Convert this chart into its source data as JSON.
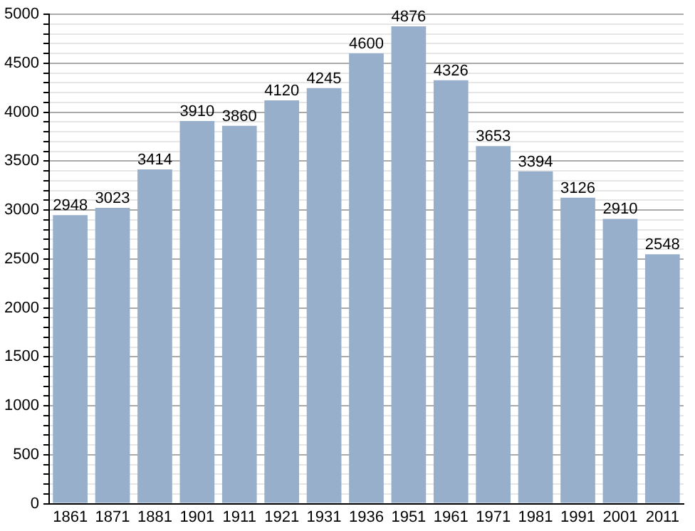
{
  "chart_data": {
    "type": "bar",
    "categories": [
      "1861",
      "1871",
      "1881",
      "1901",
      "1911",
      "1921",
      "1931",
      "1936",
      "1951",
      "1961",
      "1971",
      "1981",
      "1991",
      "2001",
      "2011"
    ],
    "values": [
      2948,
      3023,
      3414,
      3910,
      3860,
      4120,
      4245,
      4600,
      4876,
      4326,
      3653,
      3394,
      3126,
      2910,
      2548
    ],
    "color": "#97afcb",
    "ylim": [
      0,
      5000
    ],
    "yticks": [
      0,
      {
        "value": 100,
        "label": null
      },
      {
        "value": 200,
        "label": null
      },
      {
        "value": 300,
        "label": null
      },
      {
        "value": 400,
        "label": null
      },
      500,
      {
        "value": 600,
        "label": null
      },
      {
        "value": 700,
        "label": null
      },
      {
        "value": 800,
        "label": null
      },
      {
        "value": 900,
        "label": null
      },
      1000,
      {
        "value": 1100,
        "label": null
      },
      {
        "value": 1200,
        "label": null
      },
      {
        "value": 1300,
        "label": null
      },
      {
        "value": 1400,
        "label": null
      },
      1500,
      {
        "value": 1600,
        "label": null
      },
      {
        "value": 1700,
        "label": null
      },
      {
        "value": 1800,
        "label": null
      },
      {
        "value": 1900,
        "label": null
      },
      2000,
      {
        "value": 2100,
        "label": null
      },
      {
        "value": 2200,
        "label": null
      },
      {
        "value": 2300,
        "label": null
      },
      {
        "value": 2400,
        "label": null
      },
      2500,
      {
        "value": 2600,
        "label": null
      },
      {
        "value": 2700,
        "label": null
      },
      {
        "value": 2800,
        "label": null
      },
      {
        "value": 2900,
        "label": null
      },
      3000,
      {
        "value": 3100,
        "label": null
      },
      {
        "value": 3200,
        "label": null
      },
      {
        "value": 3300,
        "label": null
      },
      {
        "value": 3400,
        "label": null
      },
      3500,
      {
        "value": 3600,
        "label": null
      },
      {
        "value": 3700,
        "label": null
      },
      {
        "value": 3800,
        "label": null
      },
      {
        "value": 3900,
        "label": null
      },
      4000,
      {
        "value": 4100,
        "label": null
      },
      {
        "value": 4200,
        "label": null
      },
      {
        "value": 4300,
        "label": null
      },
      {
        "value": 4400,
        "label": null
      },
      4500,
      {
        "value": 4600,
        "label": null
      },
      {
        "value": 4700,
        "label": null
      },
      {
        "value": 4800,
        "label": null
      },
      {
        "value": 4900,
        "label": null
      },
      5000
    ],
    "grid": "y",
    "legend": false,
    "data_labels": true
  }
}
